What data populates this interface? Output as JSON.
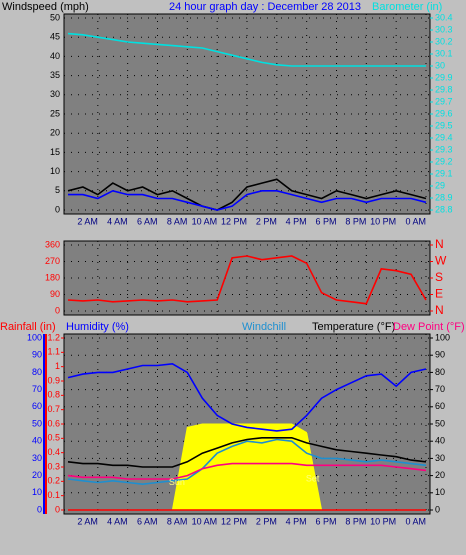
{
  "chart_data": [
    {
      "type": "line",
      "title": "24 hour graph day : December 28 2013",
      "title_color": "#0000ff",
      "ylabel": "Windspeed (mph)",
      "ycolor": "#000000",
      "y2label": "Barometer (in)",
      "y2color": "#00e0e0",
      "x": [
        0,
        1,
        2,
        3,
        4,
        5,
        6,
        7,
        8,
        9,
        10,
        11,
        12,
        13,
        14,
        15,
        16,
        17,
        18,
        19,
        20,
        21,
        22,
        23,
        24
      ],
      "xlim": [
        0,
        24
      ],
      "xticks": [
        {
          "value": 2,
          "label": "2 AM"
        },
        {
          "value": 4,
          "label": "4 AM"
        },
        {
          "value": 6,
          "label": "6 AM"
        },
        {
          "value": 8,
          "label": "8 AM"
        },
        {
          "value": 10,
          "label": "10 AM"
        },
        {
          "value": 12,
          "label": "12 PM"
        },
        {
          "value": 14,
          "label": "2 PM"
        },
        {
          "value": 16,
          "label": "4 PM"
        },
        {
          "value": 18,
          "label": "6 PM"
        },
        {
          "value": 20,
          "label": "8 PM"
        },
        {
          "value": 22,
          "label": "10 PM"
        },
        {
          "value": 24,
          "label": "0 AM"
        }
      ],
      "ylim": [
        0,
        50
      ],
      "yticks": [
        0,
        5,
        10,
        15,
        20,
        25,
        30,
        35,
        40,
        45,
        50
      ],
      "y2lim": [
        28.8,
        30.4
      ],
      "y2ticks": [
        28.8,
        28.9,
        29,
        29.1,
        29.2,
        29.3,
        29.4,
        29.5,
        29.6,
        29.7,
        29.8,
        29.9,
        30,
        30.1,
        30.2,
        30.3,
        30.4
      ],
      "grid": true,
      "series": [
        {
          "color": "#000000",
          "values": [
            5,
            6,
            4,
            7,
            5,
            6,
            4,
            5,
            3,
            1,
            0,
            2,
            6,
            7,
            8,
            5,
            4,
            3,
            5,
            4,
            3,
            4,
            5,
            4,
            3
          ]
        },
        {
          "color": "#0000ff",
          "values": [
            4,
            4,
            3,
            5,
            4,
            4,
            3,
            3,
            2,
            1,
            0,
            1,
            4,
            5,
            5,
            4,
            3,
            2,
            3,
            3,
            2,
            3,
            3,
            3,
            2
          ]
        },
        {
          "color": "#00e0e0",
          "axis": "y2",
          "values": [
            30.27,
            30.26,
            30.24,
            30.22,
            30.2,
            30.19,
            30.18,
            30.17,
            30.16,
            30.15,
            30.12,
            30.09,
            30.06,
            30.03,
            30.01,
            30,
            30,
            30,
            30,
            30,
            30,
            30,
            30,
            30,
            30
          ]
        }
      ]
    },
    {
      "type": "line",
      "ycolor": "#ff0000",
      "x": [
        0,
        1,
        2,
        3,
        4,
        5,
        6,
        7,
        8,
        9,
        10,
        11,
        12,
        13,
        14,
        15,
        16,
        17,
        18,
        19,
        20,
        21,
        22,
        23,
        24
      ],
      "xlim": [
        0,
        24
      ],
      "xticks": [
        2,
        4,
        6,
        8,
        10,
        12,
        14,
        16,
        18,
        20,
        22,
        24
      ],
      "ylim": [
        0,
        360
      ],
      "yticks": [
        0,
        90,
        180,
        270,
        360
      ],
      "y2lim": [
        0,
        360
      ],
      "y2ticks": [
        {
          "value": 0,
          "label": "N"
        },
        {
          "value": 90,
          "label": "E"
        },
        {
          "value": 180,
          "label": "S"
        },
        {
          "value": 270,
          "label": "W"
        },
        {
          "value": 360,
          "label": "N"
        }
      ],
      "grid": true,
      "series": [
        {
          "color": "#ff0000",
          "values": [
            60,
            55,
            60,
            50,
            55,
            60,
            55,
            60,
            50,
            55,
            60,
            290,
            300,
            280,
            290,
            300,
            260,
            100,
            60,
            50,
            40,
            230,
            220,
            200,
            60
          ]
        }
      ]
    },
    {
      "type": "line",
      "x": [
        0,
        1,
        2,
        3,
        4,
        5,
        6,
        7,
        8,
        9,
        10,
        11,
        12,
        13,
        14,
        15,
        16,
        17,
        18,
        19,
        20,
        21,
        22,
        23,
        24
      ],
      "xlim": [
        0,
        24
      ],
      "xticks": [
        {
          "value": 2,
          "label": "2 AM"
        },
        {
          "value": 4,
          "label": "4 AM"
        },
        {
          "value": 6,
          "label": "6 AM"
        },
        {
          "value": 8,
          "label": "8 AM"
        },
        {
          "value": 10,
          "label": "10 AM"
        },
        {
          "value": 12,
          "label": "12 PM"
        },
        {
          "value": 14,
          "label": "2 PM"
        },
        {
          "value": 16,
          "label": "4 PM"
        },
        {
          "value": 18,
          "label": "6 PM"
        },
        {
          "value": 20,
          "label": "8 PM"
        },
        {
          "value": 22,
          "label": "10 PM"
        },
        {
          "value": 24,
          "label": "0 AM"
        }
      ],
      "ylim": [
        0,
        100
      ],
      "yticks": [
        0,
        10,
        20,
        30,
        40,
        50,
        60,
        70,
        80,
        90,
        100
      ],
      "ycolor": "#0000ff",
      "y2lim": [
        0,
        100
      ],
      "y2ticks": [
        0,
        10,
        20,
        30,
        40,
        50,
        60,
        70,
        80,
        90,
        100
      ],
      "y2color": "#000000",
      "y3lim": [
        0,
        1.2
      ],
      "y3ticks": [
        0,
        0.1,
        0.2,
        0.3,
        0.4,
        0.5,
        0.6,
        0.7,
        0.8,
        0.9,
        1,
        1.1,
        1.2
      ],
      "y3color": "#ff0000",
      "grid": true,
      "annotation_color": "#ffff80",
      "annotations": [
        {
          "text": "Sun",
          "x": 7.3,
          "y": 16
        },
        {
          "text": "Set",
          "x": 16.4,
          "y": 18
        }
      ],
      "series": [
        {
          "color": "#ffff00",
          "style": "area",
          "values": [
            0,
            0,
            0,
            0,
            0,
            0,
            0,
            0,
            48,
            50,
            50,
            50,
            50,
            50,
            50,
            50,
            45,
            0,
            0,
            0,
            0,
            0,
            0,
            0,
            0
          ]
        },
        {
          "name": "Rainfall (in)",
          "color": "#ff0000",
          "axis": "y3",
          "values": [
            0,
            0,
            0,
            0,
            0,
            0,
            0,
            0,
            0,
            0,
            0,
            0,
            0,
            0,
            0,
            0,
            0,
            0,
            0,
            0,
            0,
            0,
            0,
            0,
            0
          ]
        },
        {
          "name": "Humidity (%)",
          "color": "#0000ff",
          "values": [
            77,
            79,
            80,
            80,
            82,
            84,
            84,
            85,
            80,
            65,
            55,
            50,
            48,
            47,
            46,
            47,
            55,
            65,
            70,
            74,
            78,
            79,
            72,
            80,
            82
          ]
        },
        {
          "name": "Windchill",
          "color": "#1e8fd0",
          "axis": "y2",
          "values": [
            18,
            17,
            16,
            17,
            16,
            15,
            16,
            17,
            18,
            24,
            33,
            37,
            40,
            39,
            41,
            40,
            33,
            30,
            30,
            29,
            28,
            29,
            28,
            27,
            26
          ]
        },
        {
          "name": "Temperature (°F)",
          "color": "#000000",
          "axis": "y2",
          "values": [
            28,
            27,
            27,
            26,
            26,
            25,
            25,
            25,
            28,
            33,
            36,
            39,
            41,
            42,
            42,
            42,
            39,
            37,
            35,
            34,
            33,
            32,
            31,
            29,
            28
          ]
        },
        {
          "name": "Dew Point (°F)",
          "color": "#ff0080",
          "axis": "y2",
          "values": [
            20,
            19,
            19,
            19,
            18,
            18,
            18,
            18,
            20,
            24,
            26,
            27,
            27,
            27,
            27,
            27,
            26,
            26,
            26,
            26,
            26,
            26,
            25,
            24,
            23
          ]
        }
      ]
    }
  ]
}
